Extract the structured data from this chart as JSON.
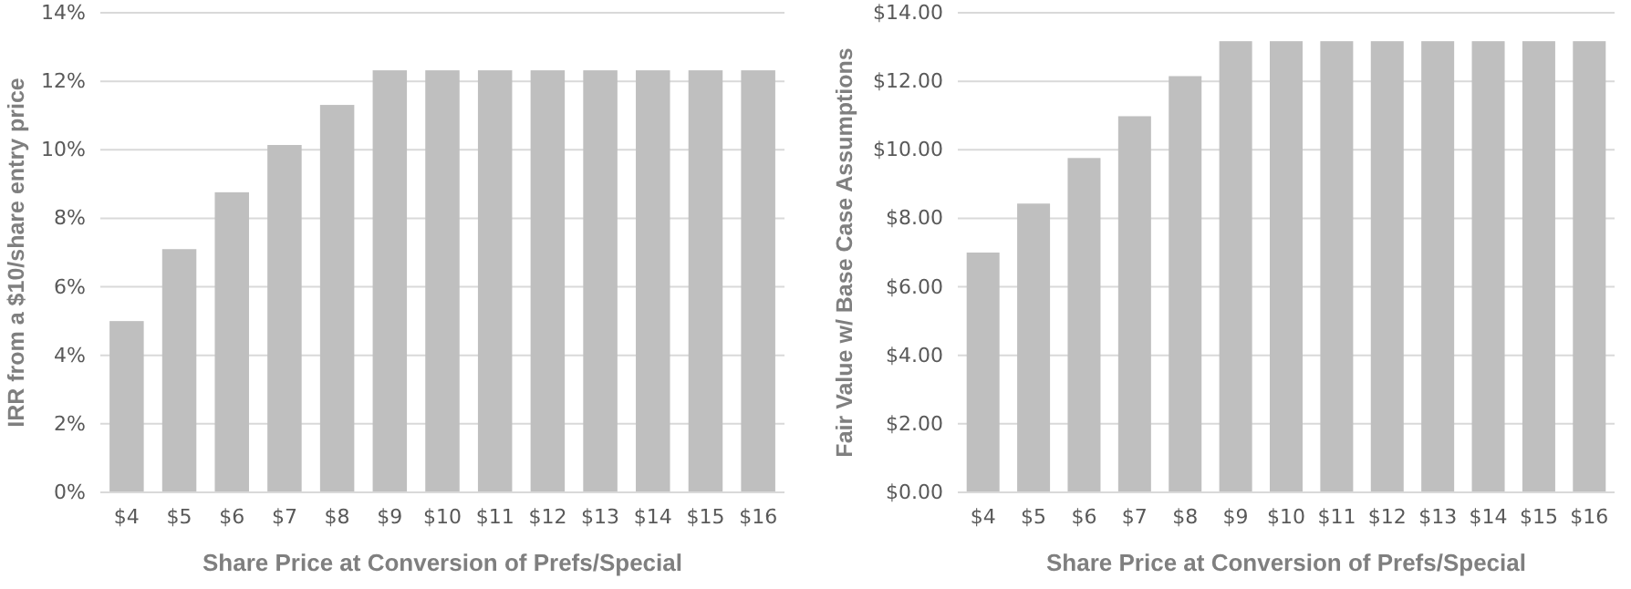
{
  "chart_data": [
    {
      "type": "bar",
      "xlabel": "Share Price at Conversion of Prefs/Special",
      "ylabel": "IRR from a $10/share entry price",
      "categories": [
        "$4",
        "$5",
        "$6",
        "$7",
        "$8",
        "$9",
        "$10",
        "$11",
        "$12",
        "$13",
        "$14",
        "$15",
        "$16"
      ],
      "values": [
        5.0,
        7.1,
        8.76,
        10.14,
        11.31,
        12.32,
        12.32,
        12.32,
        12.32,
        12.32,
        12.32,
        12.32,
        12.32
      ],
      "color": "#bfbfbf",
      "ylim": [
        0,
        14
      ],
      "yticks": [
        {
          "value": 0,
          "label": "0%"
        },
        {
          "value": 2,
          "label": "2%"
        },
        {
          "value": 4,
          "label": "4%"
        },
        {
          "value": 6,
          "label": "6%"
        },
        {
          "value": 8,
          "label": "8%"
        },
        {
          "value": 10,
          "label": "10%"
        },
        {
          "value": 12,
          "label": "12%"
        },
        {
          "value": 14,
          "label": "14%"
        }
      ],
      "grid": "y"
    },
    {
      "type": "bar",
      "xlabel": "Share Price at Conversion of Prefs/Special",
      "ylabel": "Fair Value w/ Base Case Assumptions",
      "categories": [
        "$4",
        "$5",
        "$6",
        "$7",
        "$8",
        "$9",
        "$10",
        "$11",
        "$12",
        "$13",
        "$14",
        "$15",
        "$16"
      ],
      "values": [
        7.0,
        8.43,
        9.76,
        10.98,
        12.15,
        13.17,
        13.17,
        13.17,
        13.17,
        13.17,
        13.17,
        13.17,
        13.17
      ],
      "color": "#bfbfbf",
      "ylim": [
        0,
        14
      ],
      "yticks": [
        {
          "value": 0,
          "label": "$0.00"
        },
        {
          "value": 2,
          "label": "$2.00"
        },
        {
          "value": 4,
          "label": "$4.00"
        },
        {
          "value": 6,
          "label": "$6.00"
        },
        {
          "value": 8,
          "label": "$8.00"
        },
        {
          "value": 10,
          "label": "$10.00"
        },
        {
          "value": 12,
          "label": "$12.00"
        },
        {
          "value": 14,
          "label": "$14.00"
        }
      ],
      "grid": "y"
    }
  ]
}
